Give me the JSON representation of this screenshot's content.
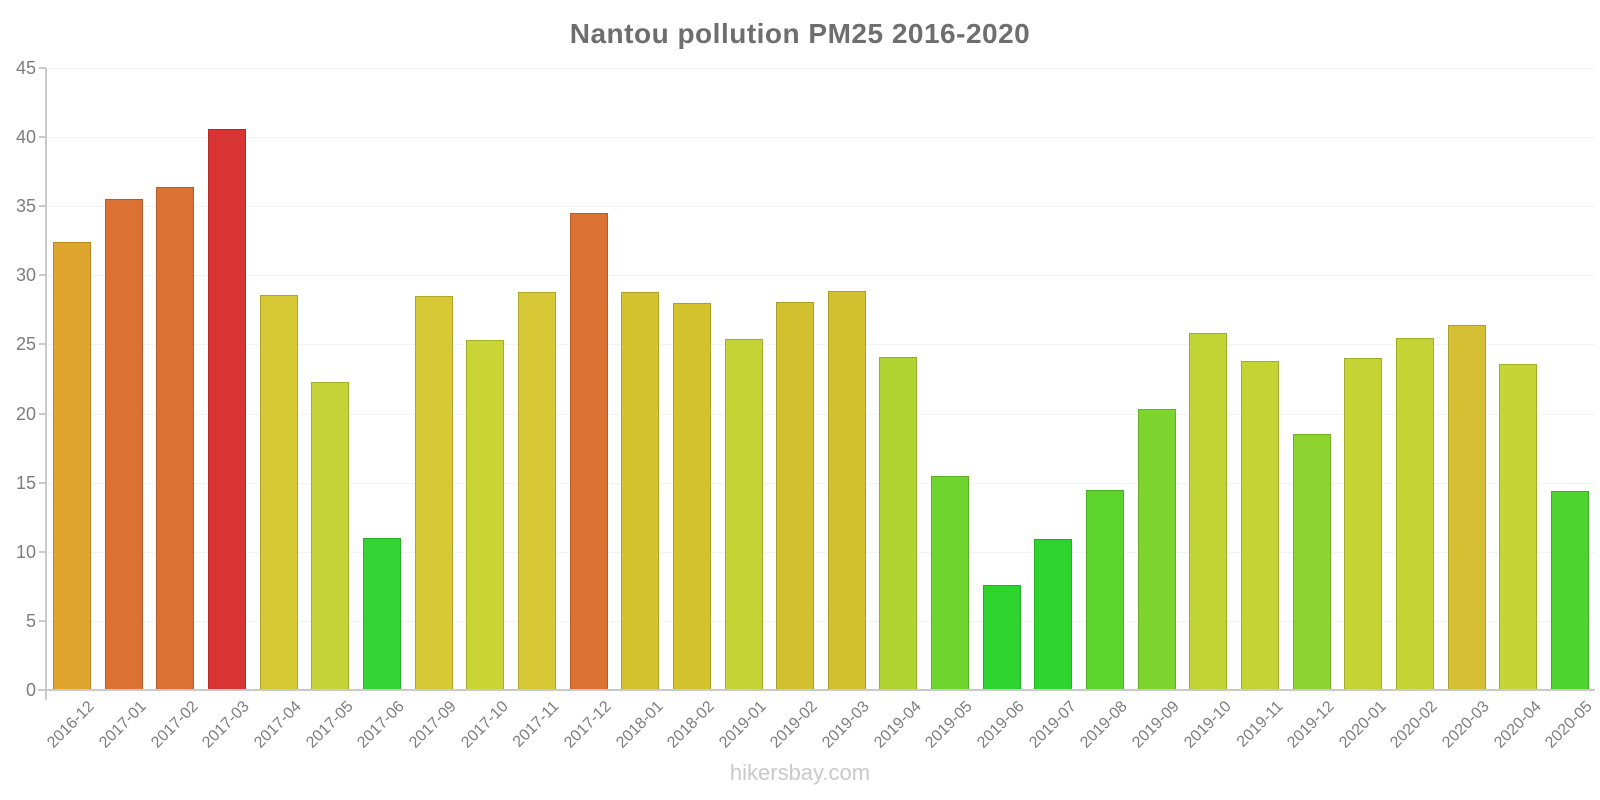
{
  "title": "Nantou pollution PM25 2016-2020",
  "watermark": "hikersbay.com",
  "colors": {
    "background": "#ffffff",
    "title_text": "#6e6e6e",
    "axis_text": "#7d7d7d",
    "axis_line": "#c9c9c9",
    "gridline": "#f2f2f2",
    "watermark_text": "#c9c9c9"
  },
  "chart_data": {
    "type": "bar",
    "title": "Nantou pollution PM25 2016-2020",
    "xlabel": "",
    "ylabel": "",
    "ylim": [
      0,
      45
    ],
    "yticks": [
      0,
      5,
      10,
      15,
      20,
      25,
      30,
      35,
      40,
      45
    ],
    "grid": "faint horizontal gridlines",
    "legend": "none",
    "categories": [
      "2016-12",
      "2017-01",
      "2017-02",
      "2017-03",
      "2017-04",
      "2017-05",
      "2017-06",
      "2017-09",
      "2017-10",
      "2017-11",
      "2017-12",
      "2018-01",
      "2018-02",
      "2019-01",
      "2019-02",
      "2019-03",
      "2019-04",
      "2019-05",
      "2019-06",
      "2019-07",
      "2019-08",
      "2019-09",
      "2019-10",
      "2019-11",
      "2019-12",
      "2020-01",
      "2020-02",
      "2020-03",
      "2020-04",
      "2020-05"
    ],
    "values": [
      32.4,
      35.5,
      36.4,
      40.6,
      28.6,
      22.3,
      11.0,
      28.5,
      25.3,
      28.8,
      34.5,
      28.8,
      28.0,
      25.4,
      28.1,
      28.9,
      24.1,
      15.5,
      7.6,
      10.9,
      14.5,
      20.3,
      25.8,
      23.8,
      18.5,
      24.0,
      25.5,
      26.4,
      23.6,
      14.4
    ],
    "bar_colors": [
      "#dfa52d",
      "#db7233",
      "#db7233",
      "#d93434",
      "#d7c835",
      "#c6d439",
      "#33d433",
      "#d7c835",
      "#c9d435",
      "#d7c835",
      "#db7233",
      "#d4c32f",
      "#d4c32f",
      "#c4d435",
      "#d2c02e",
      "#d2c02e",
      "#b2d433",
      "#6ed42e",
      "#2ed42e",
      "#2ed42e",
      "#5bd42e",
      "#7dd42f",
      "#c0d435",
      "#c4d435",
      "#8ed430",
      "#c4d435",
      "#c4d435",
      "#d4c032",
      "#c6d435",
      "#4ed42e"
    ]
  }
}
